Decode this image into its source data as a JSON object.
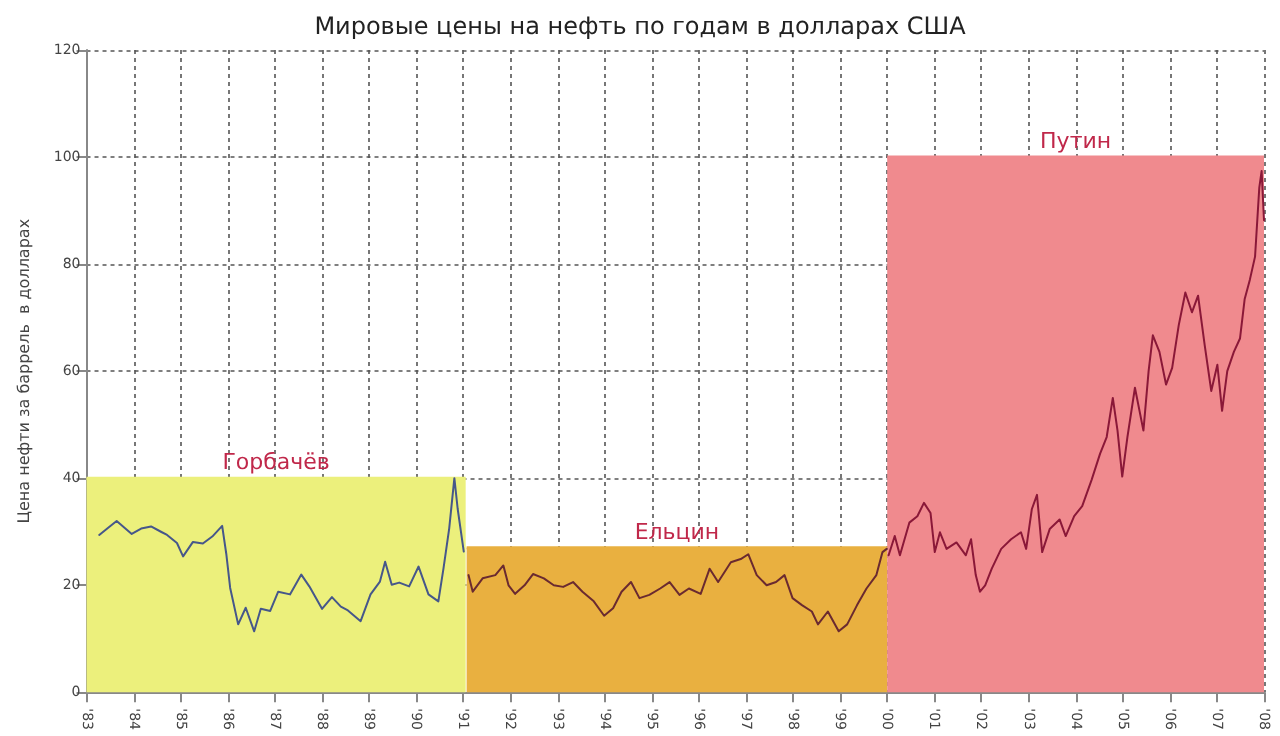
{
  "chart_data": {
    "type": "line",
    "title": "Мировые цены на нефть по годам в долларах США",
    "ylabel": "Цена нефти за баррель  в долларах",
    "xlim": [
      1983,
      2008
    ],
    "ylim": [
      0,
      120
    ],
    "yticks": [
      0,
      20,
      40,
      60,
      80,
      100,
      120
    ],
    "xticks": [
      {
        "value": 1983,
        "label": "'83"
      },
      {
        "value": 1984,
        "label": "'84"
      },
      {
        "value": 1985,
        "label": "'85"
      },
      {
        "value": 1986,
        "label": "'86"
      },
      {
        "value": 1987,
        "label": "'87"
      },
      {
        "value": 1988,
        "label": "'88"
      },
      {
        "value": 1989,
        "label": "'89"
      },
      {
        "value": 1990,
        "label": "'90"
      },
      {
        "value": 1991,
        "label": "'91"
      },
      {
        "value": 1992,
        "label": "'92"
      },
      {
        "value": 1993,
        "label": "'93"
      },
      {
        "value": 1994,
        "label": "'94"
      },
      {
        "value": 1995,
        "label": "'95"
      },
      {
        "value": 1996,
        "label": "'96"
      },
      {
        "value": 1997,
        "label": "'97"
      },
      {
        "value": 1998,
        "label": "'98"
      },
      {
        "value": 1999,
        "label": "'99"
      },
      {
        "value": 2000,
        "label": "'00"
      },
      {
        "value": 2001,
        "label": "'01"
      },
      {
        "value": 2002,
        "label": "'02"
      },
      {
        "value": 2003,
        "label": "'03"
      },
      {
        "value": 2004,
        "label": "'04"
      },
      {
        "value": 2005,
        "label": "'05"
      },
      {
        "value": 2006,
        "label": "'06"
      },
      {
        "value": 2007,
        "label": "'07"
      },
      {
        "value": 2008,
        "label": "'08"
      }
    ],
    "grid": true,
    "marker": "none",
    "line_style": "solid",
    "series": [
      {
        "type": "area",
        "color": "#ecf07c",
        "x": [
          1983,
          1991.05
        ],
        "values": [
          40,
          40
        ]
      },
      {
        "type": "area",
        "color": "#e9b040",
        "x": [
          1991.07,
          2000
        ],
        "values": [
          27,
          27
        ]
      },
      {
        "type": "area",
        "color": "#f08a8e",
        "x": [
          2000,
          2008
        ],
        "values": [
          100,
          100
        ]
      },
      {
        "color": "#46578a",
        "x": [
          1983.27,
          1983.48,
          1983.64,
          1983.96,
          1984.16,
          1984.37,
          1984.58,
          1984.71,
          1984.92,
          1985.05,
          1985.26,
          1985.47,
          1985.67,
          1985.88,
          1985.97,
          1986.05,
          1986.22,
          1986.38,
          1986.56,
          1986.7,
          1986.9,
          1987.07,
          1987.32,
          1987.56,
          1987.73,
          1988.0,
          1988.21,
          1988.4,
          1988.55,
          1988.82,
          1989.03,
          1989.23,
          1989.34,
          1989.48,
          1989.64,
          1989.85,
          1990.05,
          1990.26,
          1990.47,
          1990.58,
          1990.7,
          1990.81,
          1990.88,
          1991.01
        ],
        "values": [
          29.4,
          30.9,
          32,
          29.6,
          30.6,
          31,
          30,
          29.4,
          27.9,
          25.4,
          28.1,
          27.8,
          29.1,
          31.1,
          25.7,
          19.5,
          12.7,
          15.8,
          11.4,
          15.6,
          15.2,
          18.8,
          18.3,
          22,
          19.8,
          15.6,
          17.8,
          16,
          15.3,
          13.3,
          18.3,
          20.7,
          24.4,
          20.1,
          20.5,
          19.8,
          23.5,
          18.3,
          17,
          23.2,
          30.6,
          40,
          34.3,
          26.3
        ]
      },
      {
        "color": "#6a2a30",
        "x": [
          1991.11,
          1991.2,
          1991.41,
          1991.68,
          1991.85,
          1991.96,
          1992.1,
          1992.3,
          1992.48,
          1992.71,
          1992.92,
          1993.12,
          1993.33,
          1993.53,
          1993.77,
          1993.99,
          1994.18,
          1994.36,
          1994.56,
          1994.74,
          1994.95,
          1995.18,
          1995.38,
          1995.59,
          1995.79,
          1996.04,
          1996.23,
          1996.41,
          1996.68,
          1996.89,
          1997.05,
          1997.23,
          1997.44,
          1997.64,
          1997.82,
          1997.99,
          1998.19,
          1998.4,
          1998.53,
          1998.74,
          1998.97,
          1999.15,
          1999.36,
          1999.56,
          1999.77,
          1999.9,
          1999.99
        ],
        "values": [
          21.9,
          18.8,
          21.3,
          21.9,
          23.7,
          20,
          18.4,
          20,
          22.1,
          21.3,
          20,
          19.7,
          20.6,
          18.8,
          17,
          14.3,
          15.7,
          18.8,
          20.6,
          17.6,
          18.2,
          19.4,
          20.6,
          18.2,
          19.4,
          18.4,
          23.1,
          20.6,
          24.3,
          24.9,
          25.8,
          21.9,
          20,
          20.6,
          21.9,
          17.6,
          16.3,
          15.1,
          12.7,
          15.1,
          11.4,
          12.7,
          16.3,
          19.4,
          21.9,
          26.2,
          26.8
        ]
      },
      {
        "color": "#8a1838",
        "x": [
          2000.03,
          2000.16,
          2000.27,
          2000.47,
          2000.64,
          2000.78,
          2000.92,
          2001.01,
          2001.12,
          2001.26,
          2001.47,
          2001.67,
          2001.78,
          2001.88,
          2001.97,
          2002.08,
          2002.22,
          2002.42,
          2002.63,
          2002.84,
          2002.95,
          2003.07,
          2003.18,
          2003.29,
          2003.45,
          2003.66,
          2003.79,
          2003.97,
          2004.14,
          2004.34,
          2004.52,
          2004.66,
          2004.79,
          2004.89,
          2004.99,
          2005.1,
          2005.26,
          2005.44,
          2005.55,
          2005.64,
          2005.78,
          2005.92,
          2006.05,
          2006.19,
          2006.33,
          2006.47,
          2006.6,
          2006.74,
          2006.88,
          2007.01,
          2007.11,
          2007.22,
          2007.36,
          2007.49,
          2007.59,
          2007.7,
          2007.81,
          2007.9,
          2007.95,
          2008.0
        ],
        "values": [
          25.6,
          29.2,
          25.6,
          31.7,
          32.9,
          35.4,
          33.5,
          26.2,
          29.9,
          26.8,
          28,
          25.6,
          28.6,
          21.9,
          18.8,
          20,
          23.1,
          26.8,
          28.6,
          29.9,
          26.8,
          34.2,
          36.9,
          26.2,
          30.5,
          32.3,
          29.2,
          32.9,
          34.8,
          39.7,
          44.6,
          47.7,
          55,
          48.9,
          40.3,
          47.7,
          56.9,
          48.9,
          60,
          66.7,
          63.6,
          57.5,
          60.6,
          68.6,
          74.7,
          71,
          74.1,
          64.9,
          56.3,
          61.2,
          52.6,
          60,
          63.6,
          66.1,
          73.5,
          77.1,
          81.4,
          94.3,
          97.4,
          88.2
        ]
      }
    ],
    "annotations": [
      "Горбачёв",
      "Ельцин",
      "Путин"
    ]
  }
}
